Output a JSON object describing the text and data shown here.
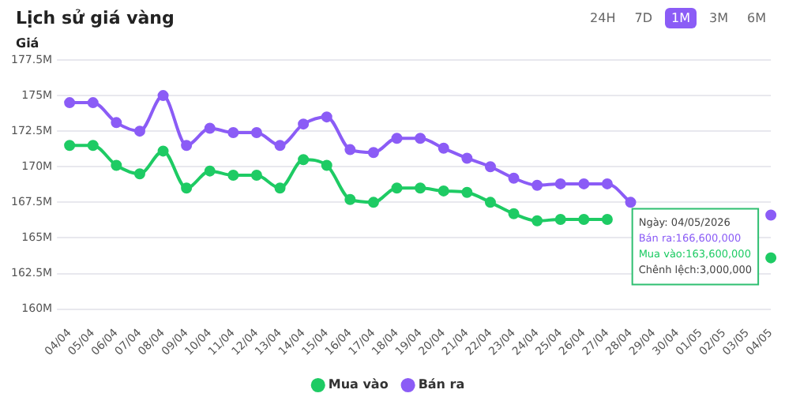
{
  "chart_data": {
    "type": "line",
    "title": "Lịch sử giá vàng",
    "ylabel": "Giá",
    "categories": [
      "04/04",
      "05/04",
      "06/04",
      "07/04",
      "08/04",
      "09/04",
      "10/04",
      "11/04",
      "12/04",
      "13/04",
      "14/04",
      "15/04",
      "16/04",
      "17/04",
      "18/04",
      "19/04",
      "20/04",
      "21/04",
      "22/04",
      "23/04",
      "24/04",
      "25/04",
      "26/04",
      "27/04",
      "28/04",
      "29/04",
      "30/04",
      "01/05",
      "02/05",
      "03/05",
      "04/05"
    ],
    "series": [
      {
        "name": "Mua vào",
        "color": "#1ecb64",
        "values": [
          171.5,
          171.5,
          170.1,
          169.5,
          171.1,
          168.5,
          169.7,
          169.4,
          169.4,
          168.5,
          170.5,
          170.1,
          167.7,
          167.5,
          168.5,
          168.5,
          168.3,
          168.2,
          167.5,
          166.7,
          166.2,
          166.3,
          166.3,
          166.3,
          null,
          null,
          null,
          null,
          null,
          null,
          163.6
        ]
      },
      {
        "name": "Bán ra",
        "color": "#8b5cf6",
        "values": [
          174.5,
          174.5,
          173.1,
          172.5,
          175.0,
          171.5,
          172.7,
          172.4,
          172.4,
          171.5,
          173.0,
          173.5,
          171.2,
          171.0,
          172.0,
          172.0,
          171.3,
          170.6,
          170.0,
          169.2,
          168.7,
          168.8,
          168.8,
          168.8,
          167.5,
          null,
          null,
          null,
          null,
          null,
          166.6
        ]
      }
    ],
    "ylim": [
      160,
      177.5
    ],
    "yticks": [
      {
        "value": 160,
        "label": "160M"
      },
      {
        "value": 162.5,
        "label": "162.5M"
      },
      {
        "value": 165,
        "label": "165M"
      },
      {
        "value": 167.5,
        "label": "167.5M"
      },
      {
        "value": 170,
        "label": "170M"
      },
      {
        "value": 172.5,
        "label": "172.5M"
      },
      {
        "value": 175,
        "label": "175M"
      },
      {
        "value": 177.5,
        "label": "177.5M"
      }
    ],
    "grid": "y",
    "legend": "bottom",
    "marker": "circle",
    "line_style": "solid",
    "annotations": [
      "24H",
      "7D",
      "1M",
      "3M",
      "6M",
      "Ngày: 04/05/2026",
      "Bán ra:166,600,000",
      "Mua vào:163,600,000",
      "Chênh lệch:3,000,000"
    ]
  }
}
